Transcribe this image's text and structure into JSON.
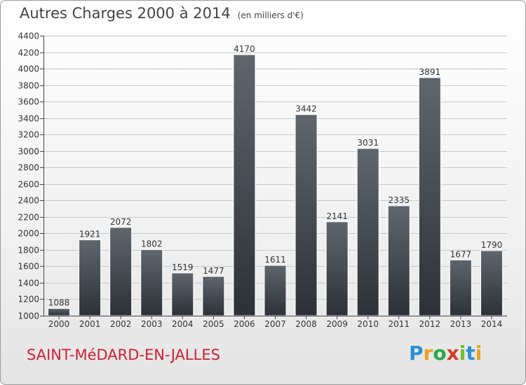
{
  "title": "Autres Charges 2000 à 2014",
  "subtitle": "(en milliers d'€)",
  "city": "SAINT-MéDARD-EN-JALLES",
  "logo": {
    "letters": [
      "P",
      "r",
      "o",
      "x",
      "i",
      "t",
      "i"
    ],
    "colors": [
      "#2a8fd6",
      "#e8a21a",
      "#2aa84a",
      "#d43a2a",
      "#6fbf2a",
      "#2a8fd6",
      "#e8a21a"
    ]
  },
  "colors": {
    "bar_top": "#5f666d",
    "bar_bottom": "#2c3137",
    "axis": "#444444",
    "grid": "#c8c8c8",
    "city": "#cc2233"
  },
  "chart_data": {
    "type": "bar",
    "title": "Autres Charges 2000 à 2014",
    "subtitle": "(en milliers d'€)",
    "categories": [
      "2000",
      "2001",
      "2002",
      "2003",
      "2004",
      "2005",
      "2006",
      "2007",
      "2008",
      "2009",
      "2010",
      "2011",
      "2012",
      "2013",
      "2014"
    ],
    "values": [
      1088,
      1921,
      2072,
      1802,
      1519,
      1477,
      4170,
      1611,
      3442,
      2141,
      3031,
      2335,
      3891,
      1677,
      1790
    ],
    "ylim": [
      1000,
      4400
    ],
    "yticks": [
      1000,
      1200,
      1400,
      1600,
      1800,
      2000,
      2200,
      2400,
      2600,
      2800,
      3000,
      3200,
      3400,
      3600,
      3800,
      4000,
      4200,
      4400
    ],
    "grid": true
  }
}
